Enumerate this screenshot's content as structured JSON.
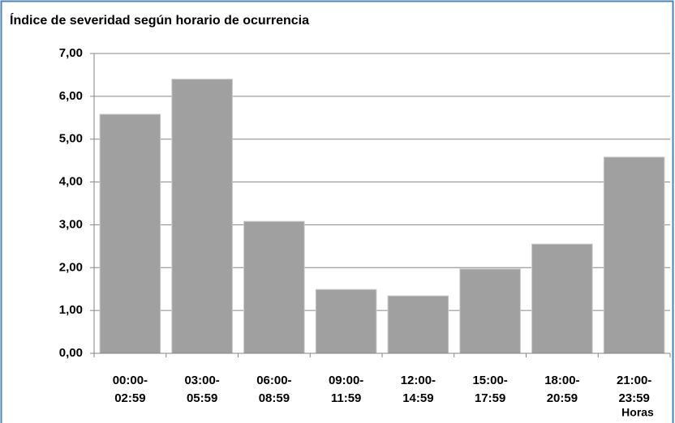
{
  "chart_data": {
    "type": "bar",
    "title": "Índice de severidad según horario de ocurrencia",
    "x_label": "Horas",
    "categories": [
      [
        "00:00-",
        "02:59"
      ],
      [
        "03:00-",
        "05:59"
      ],
      [
        "06:00-",
        "08:59"
      ],
      [
        "09:00-",
        "11:59"
      ],
      [
        "12:00-",
        "14:59"
      ],
      [
        "15:00-",
        "17:59"
      ],
      [
        "18:00-",
        "20:59"
      ],
      [
        "21:00-",
        "23:59"
      ]
    ],
    "values": [
      5.58,
      6.4,
      3.08,
      1.49,
      1.34,
      1.97,
      2.55,
      4.58
    ],
    "color": "#a0a0a0",
    "ylim": [
      0,
      7
    ],
    "yticks": [
      {
        "value": 0,
        "label": "0,00"
      },
      {
        "value": 1,
        "label": "1,00"
      },
      {
        "value": 2,
        "label": "2,00"
      },
      {
        "value": 3,
        "label": "3,00"
      },
      {
        "value": 4,
        "label": "4,00"
      },
      {
        "value": 5,
        "label": "5,00"
      },
      {
        "value": 6,
        "label": "6,00"
      },
      {
        "value": 7,
        "label": "7,00"
      }
    ],
    "grid": true
  }
}
